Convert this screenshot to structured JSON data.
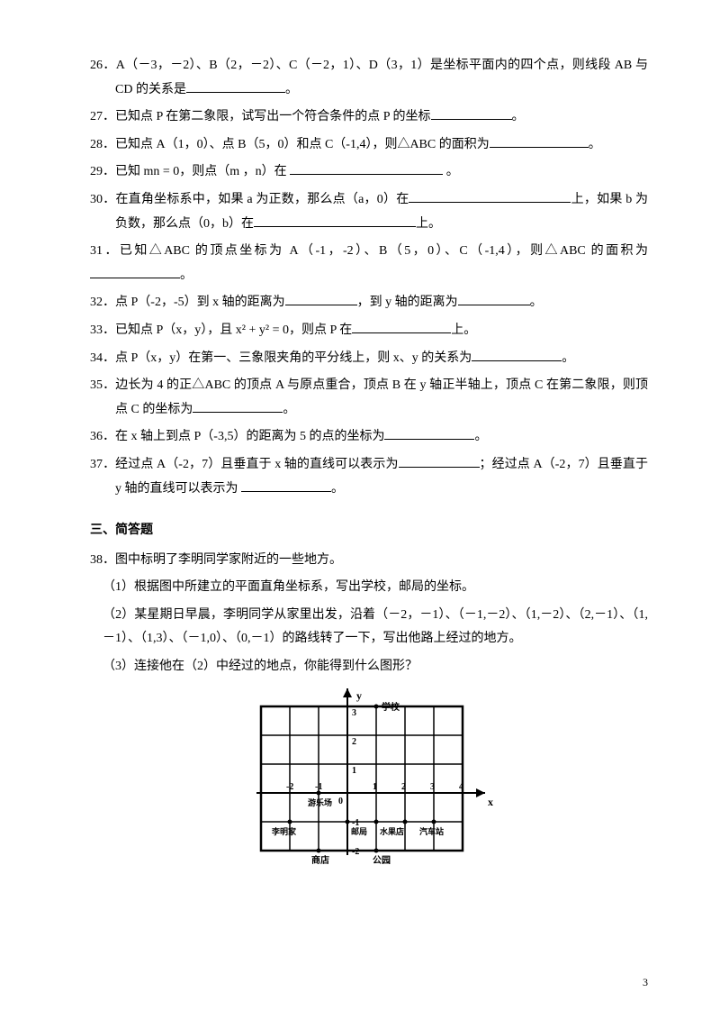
{
  "q26": "26．A（－3，－2）、B（2，－2）、C（－2，1）、D（3，1）是坐标平面内的四个点，则线段 AB 与 CD 的关系是",
  "q26_end": "。",
  "q27": "27．已知点 P 在第二象限，试写出一个符合条件的点 P 的坐标",
  "q27_end": "。",
  "q28": "28．已知点 A（1，0）、点 B（5，0）和点 C（-1,4），则△ABC 的面积为",
  "q28_end": "。",
  "q29": "29．已知 mn = 0，则点（m ，n）在 ",
  "q29_end": "。",
  "q30a": "30．在直角坐标系中，如果 a 为正数，那么点（a，0）在",
  "q30a_end": "上，如果 b 为",
  "q30b": "负数，那么点（0，b）在",
  "q30b_end": "上。",
  "q31": "31．已知△ABC 的顶点坐标为 A（-1，-2）、B（5，0）、C（-1,4），则△ABC 的面积为",
  "q31_end": "。",
  "q32a": "32．点 P（-2，-5）到 x 轴的距离为",
  "q32b": "，到 y 轴的距离为",
  "q32_end": "。",
  "q33": "33．已知点 P（x，y），且 x² + y² = 0，则点 P 在",
  "q33_end": "上。",
  "q34": "34．点 P（x，y）在第一、三象限夹角的平分线上，则 x、y 的关系为",
  "q34_end": "。",
  "q35": "35．边长为 4 的正△ABC 的顶点 A 与原点重合，顶点 B 在 y 轴正半轴上，顶点 C 在第二象限，则顶点 C 的坐标为",
  "q35_end": "。",
  "q36": "36．在 x 轴上到点 P（-3,5）的距离为 5 的点的坐标为",
  "q36_end": "。",
  "q37a": "37．经过点 A（-2，7）且垂直于 x 轴的直线可以表示为",
  "q37b": "；经过点 A（-2，7）且垂直于 y 轴的直线可以表示为",
  "q37_end": "。",
  "section": "三、简答题",
  "q38": "38．图中标明了李明同学家附近的一些地方。",
  "q38_1": "（1）根据图中所建立的平面直角坐标系，写出学校，邮局的坐标。",
  "q38_2": "（2）某星期日早晨，李明同学从家里出发，沿着（－2，－1）、（－1,－2）、（1,－2）、（2,－1）、（1,－1）、（1,3）、（－1,0）、（0,－1）的路线转了一下，写出他路上经过的地方。",
  "q38_3": "（3）连接他在（2）中经过的地点，你能得到什么图形？",
  "pagenum": "3",
  "grid": {
    "xmin": -3,
    "xmax": 4,
    "ymin": -2,
    "ymax": 3,
    "cell": 32,
    "labels": {
      "y": "y",
      "x": "x",
      "school": "学校",
      "playground": "游乐场",
      "liming": "李明家",
      "store": "商店",
      "post": "邮局",
      "fruit": "水果店",
      "bus": "汽车站",
      "park": "公园"
    },
    "ticks_x": [
      "-2",
      "-1",
      "1",
      "2",
      "3",
      "4"
    ],
    "ticks_y_pos": [
      "1",
      "2",
      "3"
    ],
    "ticks_y_neg": [
      "-1",
      "-2"
    ],
    "points": [
      {
        "x": 1,
        "y": 3
      },
      {
        "x": -1,
        "y": 0
      },
      {
        "x": -2,
        "y": -1
      },
      {
        "x": 0,
        "y": -1
      },
      {
        "x": -1,
        "y": -2
      },
      {
        "x": 1,
        "y": -2
      },
      {
        "x": 1,
        "y": -1
      },
      {
        "x": 2,
        "y": -1
      },
      {
        "x": 3,
        "y": -1
      }
    ]
  }
}
